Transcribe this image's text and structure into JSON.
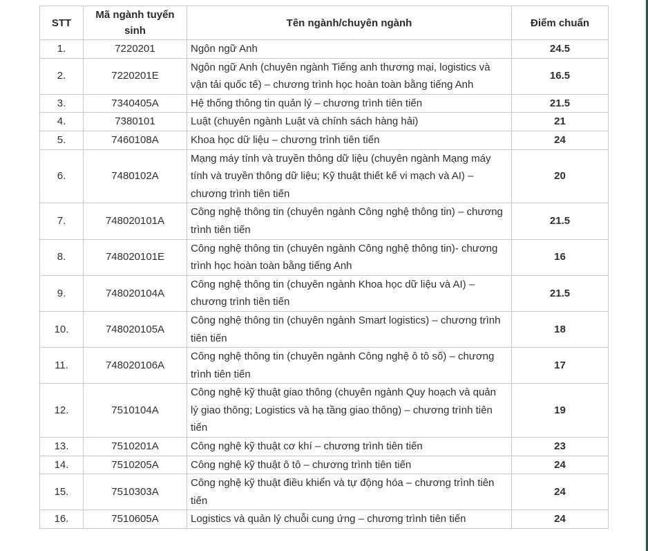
{
  "colors": {
    "edge_accent_dark": "#24544a",
    "edge_accent_light": "#ecf5f1",
    "table_border": "#c8c8c8",
    "text": "#2f2f2f"
  },
  "table": {
    "columns": {
      "stt": "STT",
      "code": "Mã ngành tuyển sinh",
      "name": "Tên ngành/chuyên ngành",
      "score": "Điểm chuẩn"
    },
    "rows": [
      {
        "stt": "1.",
        "code": "7220201",
        "name": "Ngôn ngữ Anh",
        "score": "24.5"
      },
      {
        "stt": "2.",
        "code": "7220201E",
        "name": "Ngôn ngữ Anh (chuyên ngành Tiếng anh thương mại, logistics và vận tải quốc tế) – chương trình học hoàn toàn bằng tiếng Anh",
        "score": "16.5"
      },
      {
        "stt": "3.",
        "code": "7340405A",
        "name": "Hệ thống thông tin quản lý – chương trình tiên tiến",
        "score": "21.5"
      },
      {
        "stt": "4.",
        "code": "7380101",
        "name": "Luật (chuyên ngành Luật và chính sách hàng hải)",
        "score": "21"
      },
      {
        "stt": "5.",
        "code": "7460108A",
        "name": "Khoa học dữ liệu – chương trình tiên tiến",
        "score": "24"
      },
      {
        "stt": "6.",
        "code": "7480102A",
        "name": "Mạng máy tính và truyền thông dữ liệu (chuyên ngành Mạng máy tính và truyền thông dữ liệu; Kỹ thuật thiết kế vi mạch và AI) – chương trình tiên tiến",
        "score": "20"
      },
      {
        "stt": "7.",
        "code": "748020101A",
        "name": "Công nghệ thông tin (chuyên ngành Công nghệ thông tin) – chương trình tiên tiến",
        "score": "21.5"
      },
      {
        "stt": "8.",
        "code": "748020101E",
        "name": "Công nghệ thông tin (chuyên ngành Công nghệ thông tin)- chương trình học hoàn toàn bằng tiếng Anh",
        "score": "16"
      },
      {
        "stt": "9.",
        "code": "748020104A",
        "name": "Công nghệ thông tin (chuyên ngành Khoa học dữ liệu và AI) – chương trình tiên tiến",
        "score": "21.5"
      },
      {
        "stt": "10.",
        "code": "748020105A",
        "name": "Công nghệ thông tin (chuyên ngành Smart logistics) – chương trình tiên tiến",
        "score": "18"
      },
      {
        "stt": "11.",
        "code": "748020106A",
        "name": "Công nghệ thông tin (chuyên ngành Công nghệ ô tô số) – chương trình tiên tiến",
        "score": "17"
      },
      {
        "stt": "12.",
        "code": "7510104A",
        "name": "Công nghệ kỹ thuật giao thông (chuyên ngành Quy hoạch và quản lý giao thông; Logistics và hạ tầng giao thông) – chương trình tiên tiến",
        "score": "19"
      },
      {
        "stt": "13.",
        "code": "7510201A",
        "name": "Công nghệ kỹ thuật cơ khí – chương trình tiên tiến",
        "score": "23"
      },
      {
        "stt": "14.",
        "code": "7510205A",
        "name": "Công nghệ kỹ thuật ô tô – chương trình tiên tiến",
        "score": "24"
      },
      {
        "stt": "15.",
        "code": "7510303A",
        "name": "Công nghệ kỹ thuật điều khiển và tự động hóa – chương trình tiên tiến",
        "score": "24"
      },
      {
        "stt": "16.",
        "code": "7510605A",
        "name": "Logistics và quản lý chuỗi cung ứng – chương trình tiên tiến",
        "score": "24"
      }
    ]
  }
}
